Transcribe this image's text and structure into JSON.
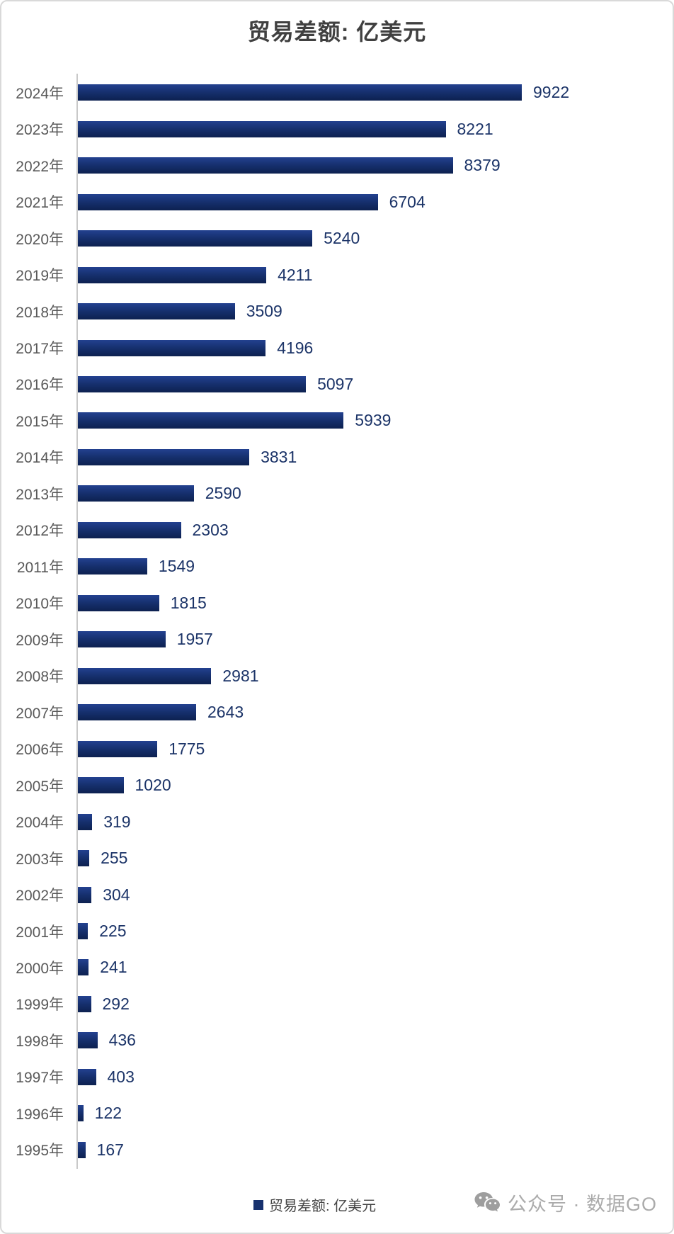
{
  "title": "贸易差额: 亿美元",
  "legend": {
    "label": "贸易差额: 亿美元",
    "marker_color": "#17316e"
  },
  "watermark": {
    "icon": "wechat-icon",
    "text": "公众号 · 数据GO"
  },
  "colors": {
    "bar_gradient_top": "#23418f",
    "bar_gradient_bottom": "#0d2150",
    "value_label": "#1c3468",
    "year_label": "#595959",
    "title": "#404040",
    "axis": "#c9c9c9",
    "border": "#d9d9d9",
    "watermark": "#ababab"
  },
  "chart_data": {
    "type": "bar",
    "orientation": "horizontal",
    "title": "贸易差额: 亿美元",
    "categories": [
      "2024年",
      "2023年",
      "2022年",
      "2021年",
      "2020年",
      "2019年",
      "2018年",
      "2017年",
      "2016年",
      "2015年",
      "2014年",
      "2013年",
      "2012年",
      "2011年",
      "2010年",
      "2009年",
      "2008年",
      "2007年",
      "2006年",
      "2005年",
      "2004年",
      "2003年",
      "2002年",
      "2001年",
      "2000年",
      "1999年",
      "1998年",
      "1997年",
      "1996年",
      "1995年"
    ],
    "values": [
      9922,
      8221,
      8379,
      6704,
      5240,
      4211,
      3509,
      4196,
      5097,
      5939,
      3831,
      2590,
      2303,
      1549,
      1815,
      1957,
      2981,
      2643,
      1775,
      1020,
      319,
      255,
      304,
      225,
      241,
      292,
      436,
      403,
      122,
      167
    ],
    "xlabel": "",
    "ylabel": "",
    "xlim": [
      0,
      10500
    ],
    "grid": false,
    "value_labels": true,
    "legend_position": "bottom-center",
    "legend_entries": [
      "贸易差额: 亿美元"
    ]
  }
}
